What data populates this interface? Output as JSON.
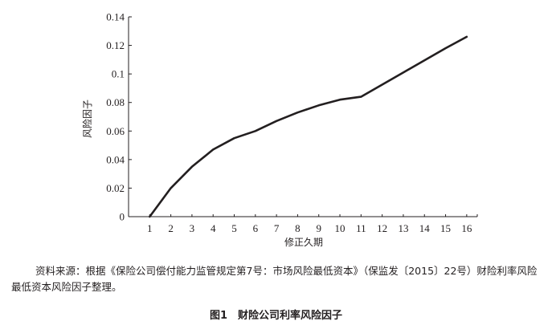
{
  "chart_data": {
    "type": "line",
    "title": "",
    "xlabel": "修正久期",
    "ylabel": "风险因子",
    "x": [
      1,
      2,
      3,
      4,
      5,
      6,
      7,
      8,
      9,
      10,
      11,
      12,
      13,
      14,
      15,
      16
    ],
    "series": [
      {
        "values": [
          0.0,
          0.02,
          0.035,
          0.047,
          0.055,
          0.06,
          0.067,
          0.073,
          0.078,
          0.082,
          0.084,
          0.0925,
          0.101,
          0.1095,
          0.118,
          0.126
        ]
      }
    ],
    "xlim": [
      0,
      16.5
    ],
    "ylim": [
      0,
      0.14
    ],
    "x_ticks": [
      "1",
      "2",
      "3",
      "4",
      "5",
      "6",
      "7",
      "8",
      "9",
      "10",
      "11",
      "12",
      "13",
      "14",
      "15",
      "16"
    ],
    "y_ticks": [
      "0",
      "0.02",
      "0.04",
      "0.06",
      "0.08",
      "0.1",
      "0.12",
      "0.14"
    ],
    "y_tick_values": [
      0,
      0.02,
      0.04,
      0.06,
      0.08,
      0.1,
      0.12,
      0.14
    ],
    "grid": false,
    "line_color": "#231f20"
  },
  "source_note": "资料来源：根据《保险公司偿付能力监管规定第7号：市场风险最低资本》（保监发〔2015〕22号）财险利率风险最低资本风险因子整理。",
  "caption": "图1　财险公司利率风险因子"
}
